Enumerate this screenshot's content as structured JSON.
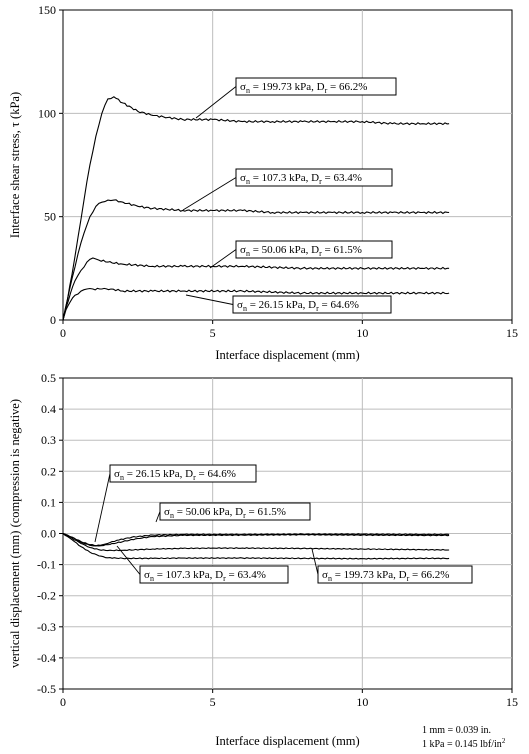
{
  "chart_data": [
    {
      "type": "line",
      "xlabel": "Interface displacement (mm)",
      "ylabel": "Interface shear stress, τ (kPa)",
      "xlim": [
        0,
        15
      ],
      "ylim": [
        0,
        150
      ],
      "x_ticks": [
        "0",
        "5",
        "10",
        "15"
      ],
      "y_ticks": [
        "0",
        "50",
        "100",
        "150"
      ],
      "grid": true,
      "series": [
        {
          "name": "σn = 199.73 kPa, Dr = 66.2%",
          "sigma": "σ",
          "sub1": "n",
          "mid": " = 199.73 kPa, D",
          "sub2": "r",
          "tail": " = 66.2%",
          "x": [
            0,
            0.15,
            0.3,
            0.5,
            0.7,
            0.9,
            1.1,
            1.3,
            1.5,
            1.7,
            2.0,
            2.5,
            3.0,
            3.5,
            4.0,
            5.0,
            6.0,
            7.0,
            8.0,
            9.0,
            10.0,
            11.0,
            12.0,
            12.9
          ],
          "y": [
            0,
            10,
            22,
            40,
            58,
            75,
            89,
            100,
            107,
            108,
            105,
            101,
            99,
            98,
            97,
            97,
            96,
            96,
            96,
            96,
            96,
            95,
            95,
            95
          ]
        },
        {
          "name": "σn = 107.3 kPa, Dr = 63.4%",
          "sigma": "σ",
          "sub1": "n",
          "mid": " = 107.3 kPa, D",
          "sub2": "r",
          "tail": " = 63.4%",
          "x": [
            0,
            0.15,
            0.3,
            0.5,
            0.7,
            0.9,
            1.1,
            1.3,
            1.5,
            1.7,
            2.0,
            2.5,
            3.0,
            4.0,
            5.0,
            6.0,
            7.0,
            8.0,
            9.0,
            10.0,
            11.0,
            12.0,
            12.9
          ],
          "y": [
            0,
            10,
            20,
            32,
            42,
            50,
            55,
            57,
            58,
            58,
            57,
            55,
            54,
            53,
            53,
            53,
            52,
            52,
            52,
            52,
            52,
            52,
            52
          ]
        },
        {
          "name": "σn = 50.06 kPa, Dr = 61.5%",
          "sigma": "σ",
          "sub1": "n",
          "mid": " = 50.06 kPa, D",
          "sub2": "r",
          "tail": " = 61.5%",
          "x": [
            0,
            0.1,
            0.25,
            0.4,
            0.6,
            0.8,
            1.0,
            1.2,
            1.5,
            2.0,
            3.0,
            4.0,
            5.0,
            6.0,
            8.0,
            10.0,
            12.0,
            12.9
          ],
          "y": [
            0,
            6,
            13,
            19,
            24,
            28,
            30,
            29,
            28,
            27,
            26,
            26,
            26,
            26,
            25,
            25,
            25,
            25
          ]
        },
        {
          "name": "σn = 26.15 kPa, Dr = 64.6%",
          "sigma": "σ",
          "sub1": "n",
          "mid": " = 26.15 kPa, D",
          "sub2": "r",
          "tail": " = 64.6%",
          "x": [
            0,
            0.1,
            0.25,
            0.4,
            0.6,
            0.8,
            1.0,
            1.3,
            1.6,
            2.0,
            3.0,
            4.0,
            6.0,
            8.0,
            10.0,
            12.0,
            12.9
          ],
          "y": [
            0,
            5,
            9,
            12,
            14,
            15,
            15,
            15,
            15,
            14,
            14,
            14,
            14,
            13,
            13,
            13,
            13
          ]
        }
      ]
    },
    {
      "type": "line",
      "xlabel": "Interface displacement (mm)",
      "ylabel": "vertical displacement (mm) (compression is negative)",
      "xlim": [
        0,
        15
      ],
      "ylim": [
        -0.5,
        0.5
      ],
      "x_ticks": [
        "0",
        "5",
        "10",
        "15"
      ],
      "y_ticks": [
        "0.5",
        "0.4",
        "0.3",
        "0.2",
        "0.1",
        "0.0",
        "-0.1",
        "-0.2",
        "-0.3",
        "-0.4",
        "-0.5"
      ],
      "grid": true,
      "series": [
        {
          "name": "σn = 26.15 kPa, Dr = 64.6%",
          "sigma": "σ",
          "sub1": "n",
          "mid": " = 26.15 kPa, D",
          "sub2": "r",
          "tail": " = 64.6%",
          "x": [
            0,
            0.3,
            0.6,
            0.9,
            1.1,
            1.4,
            1.8,
            2.3,
            3.0,
            4.0,
            6.0,
            8.0,
            10.0,
            12.0,
            12.9
          ],
          "y": [
            0,
            -0.012,
            -0.028,
            -0.038,
            -0.04,
            -0.034,
            -0.022,
            -0.012,
            -0.005,
            -0.003,
            -0.003,
            -0.002,
            -0.002,
            -0.003,
            -0.003
          ]
        },
        {
          "name": "σn = 50.06 kPa, Dr = 61.5%",
          "sigma": "σ",
          "sub1": "n",
          "mid": " = 50.06 kPa, D",
          "sub2": "r",
          "tail": " = 61.5%",
          "x": [
            0,
            0.3,
            0.6,
            0.9,
            1.2,
            1.5,
            2.0,
            2.5,
            3.0,
            4.0,
            6.0,
            8.0,
            10.0,
            12.0,
            12.9
          ],
          "y": [
            0,
            -0.012,
            -0.026,
            -0.036,
            -0.04,
            -0.036,
            -0.026,
            -0.016,
            -0.01,
            -0.006,
            -0.005,
            -0.004,
            -0.005,
            -0.006,
            -0.006
          ]
        },
        {
          "name": "σn = 107.3 kPa, Dr = 63.4%",
          "sigma": "σ",
          "sub1": "n",
          "mid": " = 107.3 kPa, D",
          "sub2": "r",
          "tail": " = 63.4%",
          "x": [
            0,
            0.3,
            0.6,
            0.9,
            1.2,
            1.5,
            2.0,
            3.0,
            4.0,
            5.0,
            6.0,
            8.0,
            10.0,
            12.0,
            12.9
          ],
          "y": [
            0,
            -0.015,
            -0.032,
            -0.045,
            -0.052,
            -0.055,
            -0.054,
            -0.05,
            -0.048,
            -0.047,
            -0.047,
            -0.048,
            -0.05,
            -0.052,
            -0.053
          ]
        },
        {
          "name": "σn = 199.73 kPa, Dr = 66.2%",
          "sigma": "σ",
          "sub1": "n",
          "mid": " = 199.73 kPa, D",
          "sub2": "r",
          "tail": " = 66.2%",
          "x": [
            0,
            0.3,
            0.6,
            0.9,
            1.2,
            1.5,
            2.0,
            3.0,
            4.0,
            6.0,
            8.0,
            10.0,
            12.0,
            12.9
          ],
          "y": [
            0,
            -0.02,
            -0.042,
            -0.06,
            -0.072,
            -0.078,
            -0.08,
            -0.08,
            -0.079,
            -0.079,
            -0.08,
            -0.081,
            -0.08,
            -0.08
          ]
        }
      ]
    }
  ],
  "conversions": [
    "1 mm = 0.039 in.",
    "1 kPa = 0.145 lbf/in",
    "2"
  ]
}
